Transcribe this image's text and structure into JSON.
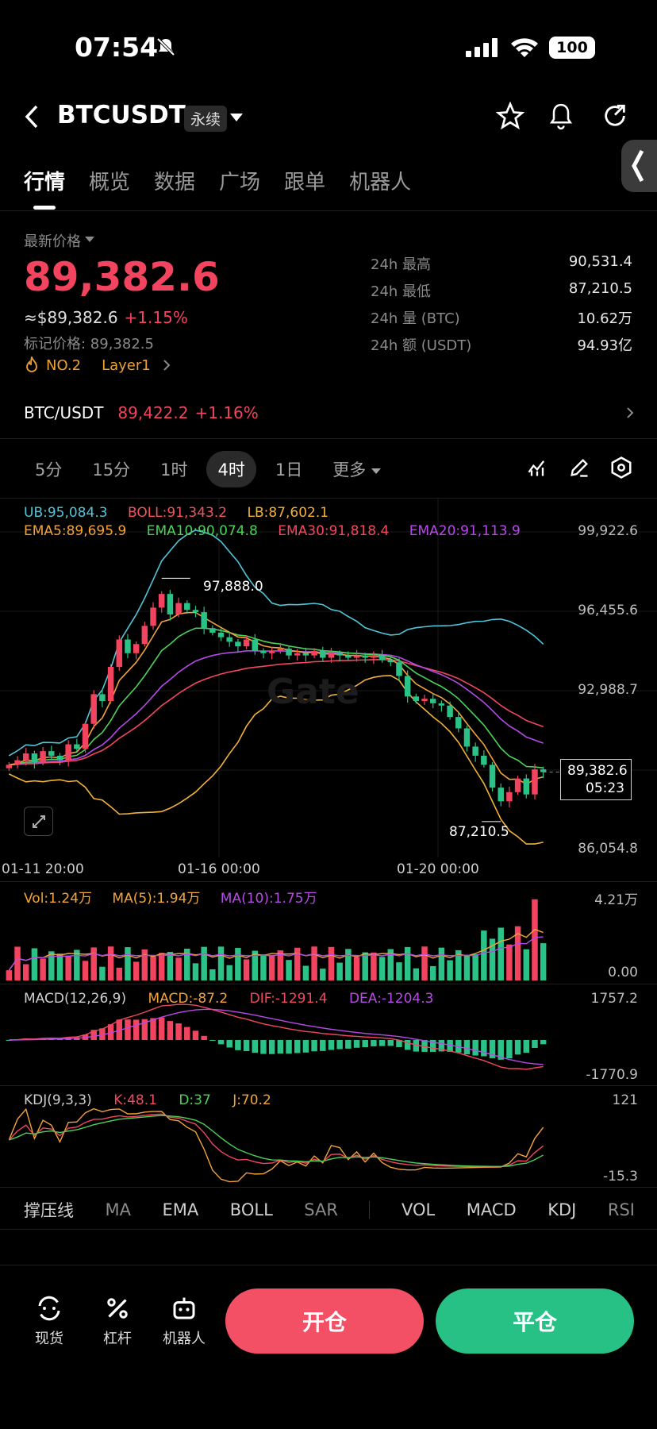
{
  "status": {
    "time": "07:54",
    "battery": "100"
  },
  "header": {
    "pair": "BTCUSDT",
    "contract_type": "永续"
  },
  "tabs": [
    "行情",
    "概览",
    "数据",
    "广场",
    "跟单",
    "机器人"
  ],
  "price": {
    "label": "最新价格",
    "last": "89,382.6",
    "usd": "≈$89,382.6",
    "change": "+1.15%",
    "mark_label": "标记价格: 89,382.5",
    "rank": "NO.2",
    "sector": "Layer1"
  },
  "stats": [
    {
      "label": "24h  最高",
      "value": "90,531.4"
    },
    {
      "label": "24h  最低",
      "value": "87,210.5"
    },
    {
      "label": "24h  量 (BTC)",
      "value": "10.62万"
    },
    {
      "label": "24h  额 (USDT)",
      "value": "94.93亿"
    }
  ],
  "spot": {
    "pair": "BTC/USDT",
    "price": "89,422.2",
    "change": "+1.16%"
  },
  "timeframes": [
    "5分",
    "15分",
    "1时",
    "4时",
    "1日",
    "更多"
  ],
  "chart": {
    "boll": {
      "ub": "UB:95,084.3",
      "boll": "BOLL:91,343.2",
      "lb": "LB:87,602.1"
    },
    "ema": {
      "ema5": "EMA5:89,695.9",
      "ema10": "EMA10:90,074.8",
      "ema30": "EMA30:91,818.4",
      "ema20": "EMA20:91,113.9"
    },
    "y_ticks": [
      "99,922.6",
      "96,455.6",
      "92,988.7",
      "86,054.8"
    ],
    "high_marker": "97,888.0",
    "low_marker": "87,210.5",
    "last_tag": "89,382.6",
    "countdown": "05:23",
    "x_ticks": [
      "01-11 20:00",
      "01-16 00:00",
      "01-20 00:00"
    ],
    "watermark": "Gate"
  },
  "chart_data": {
    "type": "candlestick",
    "ylim": [
      86054.8,
      99922.6
    ],
    "high": 97888.0,
    "low": 87210.5,
    "last": 89382.6,
    "ohlc_close": [
      89700,
      89900,
      90200,
      89800,
      90300,
      90100,
      89900,
      90600,
      90400,
      91500,
      92800,
      92500,
      94000,
      95200,
      94600,
      95000,
      95800,
      96600,
      97200,
      96300,
      96800,
      96500,
      96400,
      95700,
      95500,
      95300,
      95100,
      94900,
      95200,
      94700,
      94600,
      94700,
      94800,
      94500,
      94600,
      94500,
      94700,
      94400,
      94600,
      94500,
      94400,
      94500,
      94400,
      94500,
      94300,
      94200,
      93600,
      92700,
      92500,
      92600,
      92400,
      92300,
      91800,
      91300,
      90500,
      90100,
      89700,
      88700,
      88100,
      88500,
      89100,
      88400,
      89500,
      89382.6
    ]
  },
  "volume": {
    "vol": "Vol:1.24万",
    "ma5": "MA(5):1.94万",
    "ma10": "MA(10):1.75万",
    "max": "4.21万",
    "min": "0.00"
  },
  "macd": {
    "title": "MACD(12,26,9)",
    "macd": "MACD:-87.2",
    "dif": "DIF:-1291.4",
    "dea": "DEA:-1204.3",
    "max": "1757.2",
    "min": "-1770.9"
  },
  "kdj": {
    "title": "KDJ(9,3,3)",
    "k": "K:48.1",
    "d": "D:37",
    "j": "J:70.2",
    "max": "121",
    "min": "-15.3"
  },
  "indicators": [
    "撑压线",
    "MA",
    "EMA",
    "BOLL",
    "SAR",
    "VOL",
    "MACD",
    "KDJ",
    "RSI"
  ],
  "bottom": {
    "spot": "现货",
    "leverage": "杠杆",
    "bot": "机器人",
    "open": "开仓",
    "close": "平仓"
  },
  "colors": {
    "up": "#f3445f",
    "down": "#2bc287",
    "open_btn": "#f35066",
    "close_btn": "#27c085"
  }
}
